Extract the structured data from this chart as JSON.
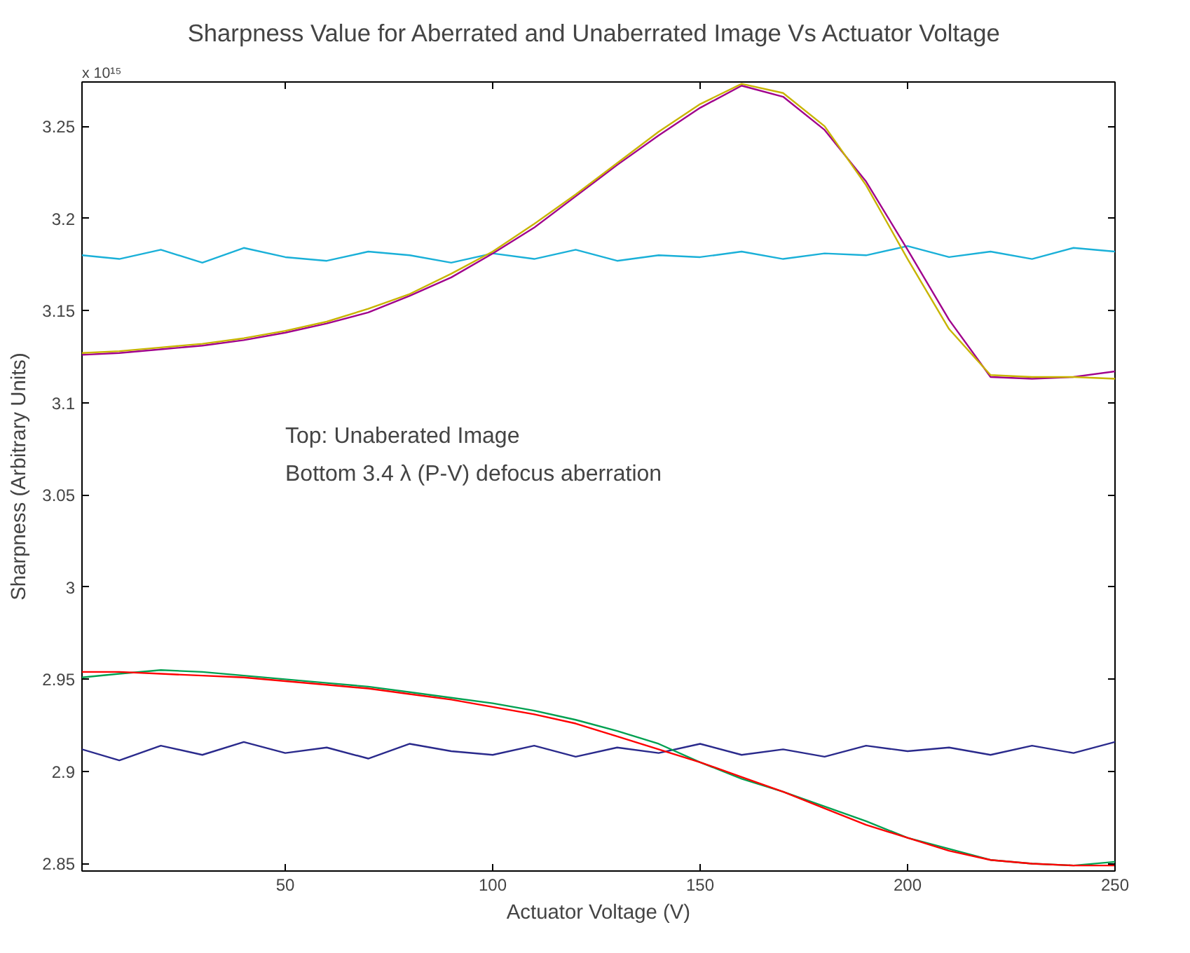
{
  "chart_data": {
    "type": "line",
    "title": "Sharpness  Value for Aberrated and Unaberrated Image Vs Actuator Voltage",
    "xlabel": "Actuator Voltage (V)",
    "ylabel": "Sharpness (Arbitrary Units)",
    "annotations": [
      "x 10¹⁵",
      "Top: Unaberated Image",
      "Bottom 3.4 λ (P-V) defocus aberration"
    ],
    "x": [
      1,
      10,
      20,
      30,
      40,
      50,
      60,
      70,
      80,
      90,
      100,
      110,
      120,
      130,
      140,
      150,
      160,
      170,
      180,
      190,
      200,
      210,
      220,
      230,
      240,
      250
    ],
    "xlim": [
      1,
      250
    ],
    "xticks": [
      50,
      100,
      150,
      200,
      250
    ],
    "ylim": [
      2.846,
      3.274
    ],
    "yticks": [
      2.85,
      2.9,
      2.95,
      3,
      3.05,
      3.1,
      3.15,
      3.2,
      3.25
    ],
    "grid": false,
    "line_style": "solid",
    "marker": "none",
    "series": [
      {
        "color": "#1ab0d8",
        "values": [
          3.18,
          3.178,
          3.183,
          3.176,
          3.184,
          3.179,
          3.177,
          3.182,
          3.18,
          3.176,
          3.181,
          3.178,
          3.183,
          3.177,
          3.18,
          3.179,
          3.182,
          3.178,
          3.181,
          3.18,
          3.185,
          3.179,
          3.182,
          3.178,
          3.184,
          3.182
        ]
      },
      {
        "color": "#a0008c",
        "values": [
          3.126,
          3.127,
          3.129,
          3.131,
          3.134,
          3.138,
          3.143,
          3.149,
          3.158,
          3.168,
          3.181,
          3.195,
          3.212,
          3.229,
          3.245,
          3.26,
          3.272,
          3.266,
          3.248,
          3.22,
          3.183,
          3.145,
          3.114,
          3.113,
          3.114,
          3.117
        ]
      },
      {
        "color": "#c8b400",
        "values": [
          3.127,
          3.128,
          3.13,
          3.132,
          3.135,
          3.139,
          3.144,
          3.151,
          3.159,
          3.17,
          3.182,
          3.197,
          3.213,
          3.23,
          3.247,
          3.262,
          3.273,
          3.268,
          3.25,
          3.218,
          3.178,
          3.14,
          3.115,
          3.114,
          3.114,
          3.113
        ]
      },
      {
        "color": "#2a2a8c",
        "values": [
          2.912,
          2.906,
          2.914,
          2.909,
          2.916,
          2.91,
          2.913,
          2.907,
          2.915,
          2.911,
          2.909,
          2.914,
          2.908,
          2.913,
          2.91,
          2.915,
          2.909,
          2.912,
          2.908,
          2.914,
          2.911,
          2.913,
          2.909,
          2.914,
          2.91,
          2.916
        ]
      },
      {
        "color": "#00a050",
        "values": [
          2.951,
          2.953,
          2.955,
          2.954,
          2.952,
          2.95,
          2.948,
          2.946,
          2.943,
          2.94,
          2.937,
          2.933,
          2.928,
          2.922,
          2.915,
          2.905,
          2.896,
          2.889,
          2.881,
          2.873,
          2.864,
          2.858,
          2.852,
          2.85,
          2.849,
          2.851
        ]
      },
      {
        "color": "#ff0000",
        "values": [
          2.954,
          2.954,
          2.953,
          2.952,
          2.951,
          2.949,
          2.947,
          2.945,
          2.942,
          2.939,
          2.935,
          2.931,
          2.926,
          2.919,
          2.912,
          2.905,
          2.897,
          2.889,
          2.88,
          2.871,
          2.864,
          2.857,
          2.852,
          2.85,
          2.849,
          2.849
        ]
      }
    ]
  }
}
